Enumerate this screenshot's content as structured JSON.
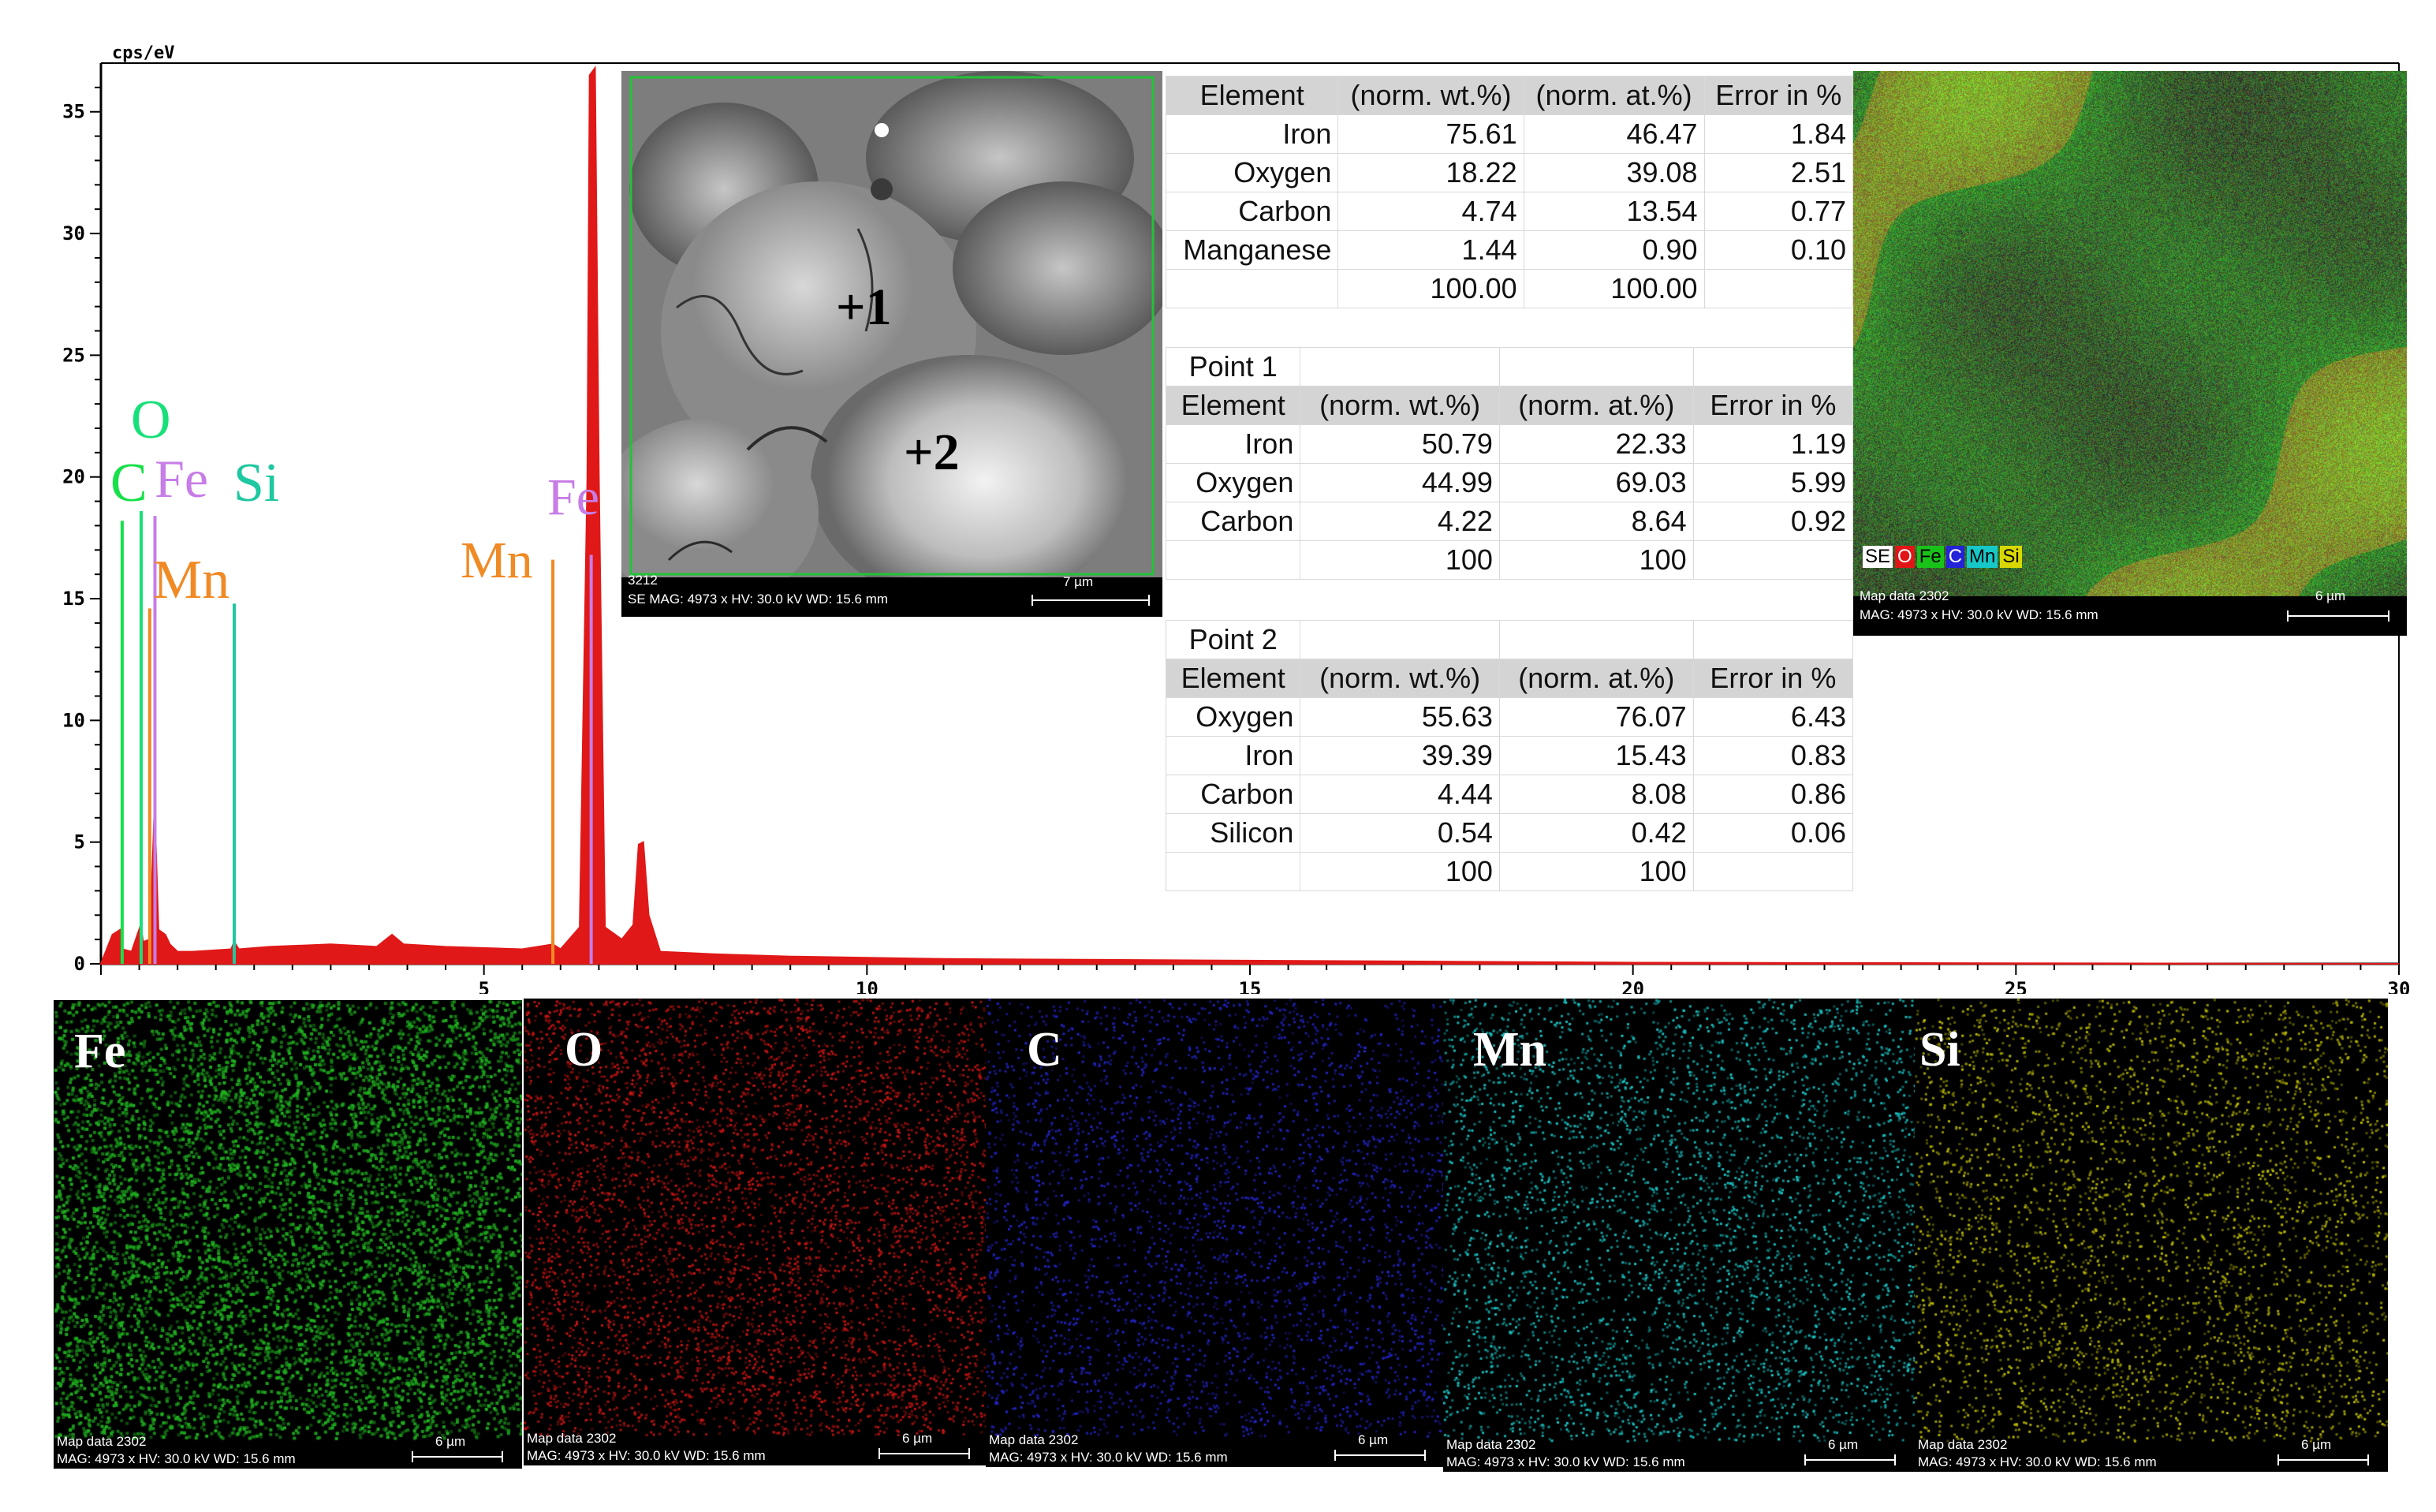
{
  "chart_data": {
    "type": "area",
    "y_axis_unit": "cps/eV",
    "xlim": [
      0,
      30
    ],
    "ylim": [
      0,
      37
    ],
    "x_ticks": [
      5,
      10,
      15,
      20,
      25,
      30
    ],
    "y_ticks": [
      0,
      5,
      10,
      15,
      20,
      25,
      30,
      35
    ],
    "spectrum": [
      [
        0.0,
        0
      ],
      [
        0.15,
        1.2
      ],
      [
        0.25,
        1.4
      ],
      [
        0.28,
        0.6
      ],
      [
        0.4,
        0.5
      ],
      [
        0.52,
        1.6
      ],
      [
        0.55,
        0.9
      ],
      [
        0.64,
        1.0
      ],
      [
        0.7,
        6.5
      ],
      [
        0.75,
        1.4
      ],
      [
        0.84,
        1.2
      ],
      [
        0.9,
        0.8
      ],
      [
        1.0,
        0.5
      ],
      [
        1.2,
        0.5
      ],
      [
        1.7,
        0.6
      ],
      [
        1.74,
        0.9
      ],
      [
        1.8,
        0.6
      ],
      [
        2.2,
        0.7
      ],
      [
        3.0,
        0.8
      ],
      [
        3.6,
        0.7
      ],
      [
        3.8,
        1.2
      ],
      [
        3.95,
        0.8
      ],
      [
        4.5,
        0.7
      ],
      [
        5.5,
        0.6
      ],
      [
        5.9,
        0.8
      ],
      [
        6.0,
        0.6
      ],
      [
        6.25,
        1.5
      ],
      [
        6.35,
        20
      ],
      [
        6.38,
        36.5
      ],
      [
        6.45,
        36.8
      ],
      [
        6.5,
        20
      ],
      [
        6.58,
        1.5
      ],
      [
        6.8,
        1.0
      ],
      [
        6.95,
        1.6
      ],
      [
        7.02,
        4.9
      ],
      [
        7.08,
        5.0
      ],
      [
        7.15,
        2.0
      ],
      [
        7.3,
        0.5
      ],
      [
        8.0,
        0.4
      ],
      [
        9.0,
        0.3
      ],
      [
        11.0,
        0.2
      ],
      [
        14.0,
        0.15
      ],
      [
        17.0,
        0.1
      ],
      [
        20.0,
        0.05
      ],
      [
        30.0,
        0.0
      ]
    ],
    "line_markers": [
      {
        "label": "C",
        "energy": 0.277,
        "color": "#17e04a",
        "height": 18.2
      },
      {
        "label": "O",
        "energy": 0.525,
        "color": "#17e07a",
        "height": 18.6
      },
      {
        "label": "Fe",
        "energy": 0.705,
        "color": "#c77de6",
        "height": 18.4
      },
      {
        "label": "Mn",
        "energy": 0.637,
        "color": "#f08a24",
        "height": 14.6
      },
      {
        "label": "Si",
        "energy": 1.74,
        "color": "#1fc8a0",
        "height": 14.8
      },
      {
        "label": "Mn",
        "energy": 5.9,
        "color": "#f08a24",
        "height": 16.6
      },
      {
        "label": "Fe",
        "energy": 6.4,
        "color": "#c77de6",
        "height": 16.8
      }
    ],
    "peak_labels": [
      {
        "label": "O",
        "color": "#17e07a"
      },
      {
        "label": "C",
        "color": "#17e04a"
      },
      {
        "label": "Fe",
        "color": "#c77de6"
      },
      {
        "label": "Si",
        "color": "#1fc8a0"
      },
      {
        "label": "Mn",
        "color": "#f08a24"
      },
      {
        "label": "Mn",
        "color": "#f08a24"
      },
      {
        "label": "Fe",
        "color": "#c77de6"
      }
    ],
    "fill_color": "#e01818",
    "grid": false
  },
  "sem_image": {
    "id_label": "3212",
    "caption": "SE  MAG: 4973 x  HV: 30.0 kV  WD: 15.6 mm",
    "scale_label": "7 µm",
    "points": [
      "+1",
      "+2"
    ]
  },
  "composite_map": {
    "caption1": "Map data 2302",
    "caption2": "MAG: 4973 x  HV: 30.0 kV  WD: 15.6 mm",
    "scale_label": "6 µm",
    "legend": [
      {
        "label": "SE",
        "bg": "#ffffff",
        "fg": "#000000"
      },
      {
        "label": "O",
        "bg": "#e11515",
        "fg": "#ffffff"
      },
      {
        "label": "Fe",
        "bg": "#19c219",
        "fg": "#000000"
      },
      {
        "label": "C",
        "bg": "#2323d8",
        "fg": "#ffffff"
      },
      {
        "label": "Mn",
        "bg": "#16c8c8",
        "fg": "#000000"
      },
      {
        "label": "Si",
        "bg": "#d8d800",
        "fg": "#000000"
      }
    ]
  },
  "tables": {
    "overall": {
      "headers": [
        "Element",
        "(norm. wt.%)",
        "(norm. at.%)",
        "Error in %"
      ],
      "rows": [
        [
          "Iron",
          "75.61",
          "46.47",
          "1.84"
        ],
        [
          "Oxygen",
          "18.22",
          "39.08",
          "2.51"
        ],
        [
          "Carbon",
          "4.74",
          "13.54",
          "0.77"
        ],
        [
          "Manganese",
          "1.44",
          "0.90",
          "0.10"
        ],
        [
          "",
          "100.00",
          "100.00",
          ""
        ]
      ]
    },
    "point1": {
      "title": "Point 1",
      "headers": [
        "Element",
        "(norm. wt.%)",
        "(norm. at.%)",
        "Error in %"
      ],
      "rows": [
        [
          "Iron",
          "50.79",
          "22.33",
          "1.19"
        ],
        [
          "Oxygen",
          "44.99",
          "69.03",
          "5.99"
        ],
        [
          "Carbon",
          "4.22",
          "8.64",
          "0.92"
        ],
        [
          "",
          "100",
          "100",
          ""
        ]
      ]
    },
    "point2": {
      "title": "Point 2",
      "headers": [
        "Element",
        "(norm. wt.%)",
        "(norm. at.%)",
        "Error in %"
      ],
      "rows": [
        [
          "Oxygen",
          "55.63",
          "76.07",
          "6.43"
        ],
        [
          "Iron",
          "39.39",
          "15.43",
          "0.83"
        ],
        [
          "Carbon",
          "4.44",
          "8.08",
          "0.86"
        ],
        [
          "Silicon",
          "0.54",
          "0.42",
          "0.06"
        ],
        [
          "",
          "100",
          "100",
          ""
        ]
      ]
    }
  },
  "element_maps": [
    {
      "label": "Fe",
      "color": "#1fae1f",
      "caption1": "Map data 2302",
      "caption2": "MAG: 4973 x  HV: 30.0 kV  WD: 15.6 mm",
      "scale_label": "6 µm"
    },
    {
      "label": "O",
      "color": "#c81414",
      "caption1": "Map data 2302",
      "caption2": "MAG: 4973 x  HV: 30.0 kV  WD: 15.6 mm",
      "scale_label": "6 µm"
    },
    {
      "label": "C",
      "color": "#2424c8",
      "caption1": "Map data 2302",
      "caption2": "MAG: 4973 x  HV: 30.0 kV  WD: 15.6 mm",
      "scale_label": "6 µm"
    },
    {
      "label": "Mn",
      "color": "#18c4c4",
      "caption1": "Map data 2302",
      "caption2": "MAG: 4973 x  HV: 30.0 kV  WD: 15.6 mm",
      "scale_label": "6 µm"
    },
    {
      "label": "Si",
      "color": "#b8b800",
      "caption1": "Map data 2302",
      "caption2": "MAG: 4973 x  HV: 30.0 kV  WD: 15.6 mm",
      "scale_label": "6 µm"
    }
  ]
}
